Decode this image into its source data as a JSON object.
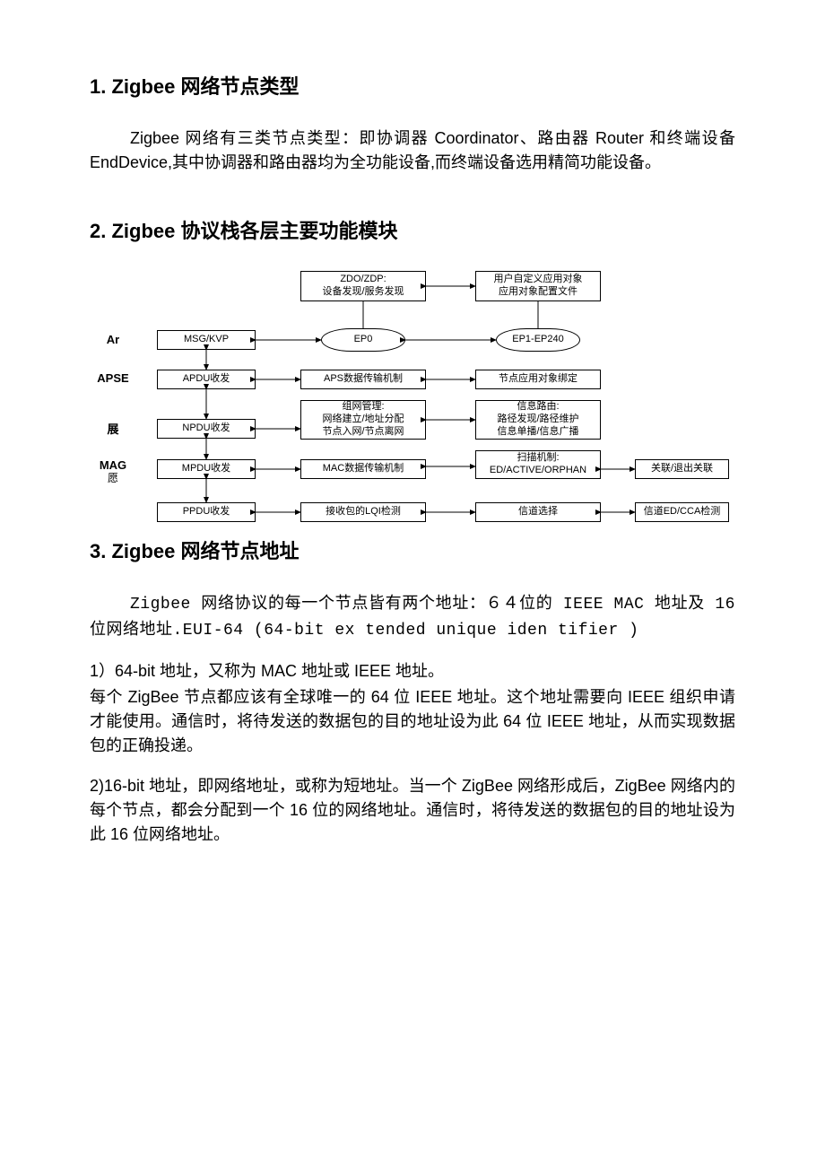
{
  "sections": {
    "s1": {
      "title": "1. Zigbee 网络节点类型",
      "para": "Zigbee 网络有三类节点类型：即协调器 Coordinator、路由器 Router 和终端设备 EndDevice,其中协调器和路由器均为全功能设备,而终端设备选用精简功能设备。"
    },
    "s2": {
      "title": "2. Zigbee 协议栈各层主要功能模块"
    },
    "s3": {
      "title": "3. Zigbee 网络节点地址",
      "para1": "Zigbee 网络协议的每一个节点皆有两个地址：６４位的 IEEE MAC 地址及 16 位网络地址.EUI-64 (64-bit ex tended unique iden tifier )",
      "para2a": "1）64-bit 地址，又称为 MAC 地址或 IEEE 地址。",
      "para2b": "每个 ZigBee 节点都应该有全球唯一的 64 位 IEEE 地址。这个地址需要向 IEEE 组织申请才能使用。通信时，将待发送的数据包的目的地址设为此 64 位 IEEE 地址，从而实现数据包的正确投递。",
      "para3": "2)16-bit 地址，即网络地址，或称为短地址。当一个 ZigBee 网络形成后，ZigBee 网络内的每个节点，都会分配到一个 16 位的网络地址。通信时，将待发送的数据包的目的地址设为此 16 位网络地址。"
    }
  },
  "diagram": {
    "rowlabels": {
      "r1": "Ar",
      "r2": "APSE",
      "r3": "展",
      "r4a": "MAG",
      "r4b": "愿"
    },
    "nodes": {
      "zdo": {
        "text": "ZDO/ZDP:\n设备发现/服务发现"
      },
      "user": {
        "text": "用户自定义应用对象\n应用对象配置文件"
      },
      "msg": {
        "text": "MSG/KVP"
      },
      "ep0": {
        "text": "EP0"
      },
      "ep1": {
        "text": "EP1-EP240"
      },
      "apdu": {
        "text": "APDU收发"
      },
      "aps": {
        "text": "APS数据传输机制"
      },
      "bind": {
        "text": "节点应用对象绑定"
      },
      "npdu": {
        "text": "NPDU收发"
      },
      "net": {
        "text": "组网管理:\n网络建立/地址分配\n节点入网/节点离网"
      },
      "route": {
        "text": "信息路由:\n路径发现/路径维护\n信息单播/信息广播"
      },
      "mpdu": {
        "text": "MPDU收发"
      },
      "macdt": {
        "text": "MAC数据传输机制"
      },
      "scan": {
        "text": "扫描机制:\nED/ACTIVE/ORPHAN"
      },
      "assoc": {
        "text": "关联/退出关联"
      },
      "ppdu": {
        "text": "PPDU收发"
      },
      "lqi": {
        "text": "接收包的LQI检测"
      },
      "chsel": {
        "text": "信道选择"
      },
      "edcca": {
        "text": "信道ED/CCA检测"
      }
    },
    "colors": {
      "line": "#000000"
    }
  }
}
